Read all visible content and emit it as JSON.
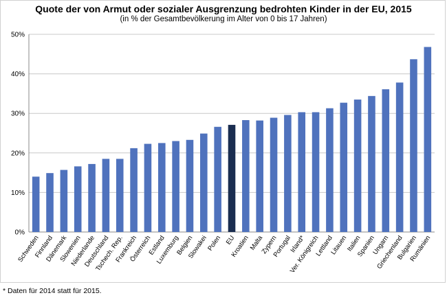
{
  "chart_data": {
    "type": "bar",
    "title": "Quote der von Armut oder sozialer Ausgrenzung bedrohten Kinder in der EU, 2015",
    "subtitle": "(in % der Gesamtbevölkerung im Alter von 0 bis 17 Jahren)",
    "xlabel": "",
    "ylabel": "",
    "ylim": [
      0,
      50
    ],
    "yticks": [
      "0%",
      "10%",
      "20%",
      "30%",
      "40%",
      "50%"
    ],
    "grid": true,
    "categories": [
      "Schweden",
      "Finnland",
      "Dänemark",
      "Slowenien",
      "Niederlande",
      "Deutschland",
      "Tschech. Rep.",
      "Frankreich",
      "Österreich",
      "Estland",
      "Luxemburg",
      "Belgien",
      "Slowakei",
      "Polen",
      "EU",
      "Kroatien",
      "Malta",
      "Zypern",
      "Portugal",
      "Irland*",
      "Ver. Königreich",
      "Lettland",
      "Litauen",
      "Italien",
      "Spanien",
      "Ungarn",
      "Griechenland",
      "Bulgarien",
      "Rumänien"
    ],
    "values": [
      14.0,
      14.9,
      15.7,
      16.6,
      17.2,
      18.5,
      18.5,
      21.2,
      22.3,
      22.5,
      23.0,
      23.3,
      24.9,
      26.6,
      27.1,
      28.3,
      28.2,
      28.9,
      29.6,
      30.3,
      30.3,
      31.3,
      32.7,
      33.5,
      34.4,
      36.1,
      37.8,
      43.7,
      46.8
    ],
    "highlight": "EU",
    "colors": {
      "bar": "#4f72bd",
      "highlight": "#1a2d50",
      "grid": "#c8c8c8"
    }
  },
  "footnote": "* Daten für 2014 statt für 2015."
}
